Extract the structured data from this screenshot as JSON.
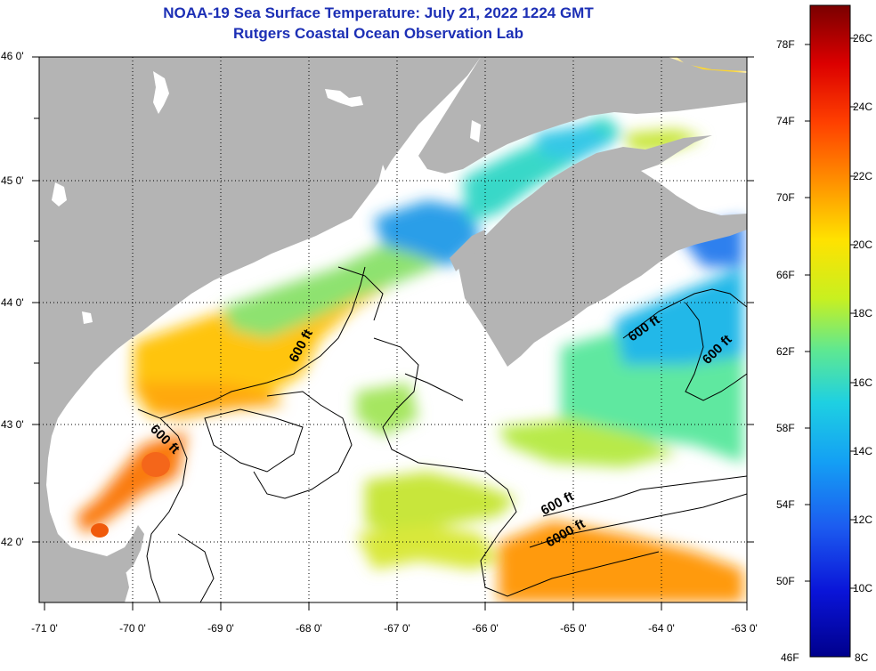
{
  "header": {
    "title_line1": "NOAA-19 Sea Surface Temperature:  July 21, 2022 1224 GMT",
    "title_line2": "Rutgers Coastal Ocean Observation Lab"
  },
  "map": {
    "lat_labels": [
      "46 0'",
      "45 0'",
      "44 0'",
      "43 0'",
      "42 0'"
    ],
    "lon_labels": [
      "-71 0'",
      "-70 0'",
      "-69 0'",
      "-68 0'",
      "-67 0'",
      "-66 0'",
      "-65 0'",
      "-64 0'",
      "-63 0'"
    ],
    "contour_labels": [
      "600 ft",
      "600 ft",
      "600 ft",
      "600 ft",
      "600 ft",
      "6000 ft"
    ],
    "colors": {
      "land": "#b4b4b4",
      "no_data": "#ffffff"
    }
  },
  "colorbar": {
    "fahrenheit_labels": [
      "78F",
      "74F",
      "70F",
      "66F",
      "62F",
      "58F",
      "54F",
      "50F",
      "46F"
    ],
    "celsius_labels": [
      "26C",
      "24C",
      "22C",
      "20C",
      "18C",
      "16C",
      "14C",
      "12C",
      "10C",
      "8C"
    ]
  }
}
